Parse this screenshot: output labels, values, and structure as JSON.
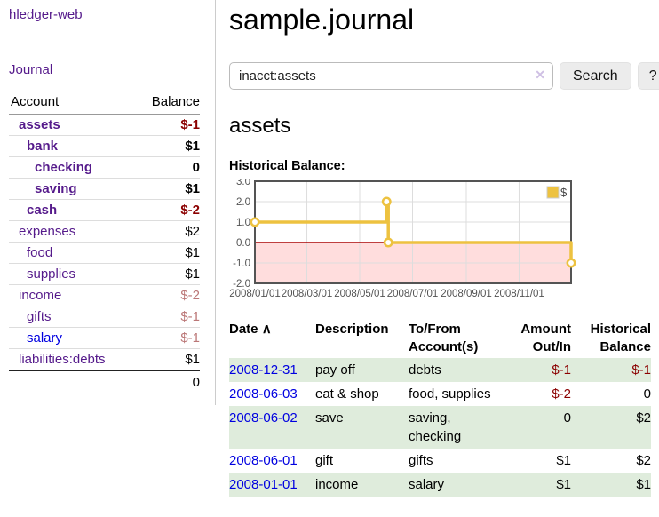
{
  "app": {
    "brand": "hledger-web",
    "nav_journal": "Journal"
  },
  "colors": {
    "link_purple": "#551a8b",
    "link_blue": "#0000e0",
    "negative": "#8b0000",
    "negative_muted": "#bb7777",
    "row_stripe_green": "#dfecdc"
  },
  "sidebar": {
    "table": {
      "col_account": "Account",
      "col_balance": "Balance",
      "rows": [
        {
          "label": "assets",
          "indent": 1,
          "bold": true,
          "balance": "$-1"
        },
        {
          "label": "bank",
          "indent": 2,
          "bold": true,
          "balance": "$1"
        },
        {
          "label": "checking",
          "indent": 3,
          "bold": true,
          "balance": "0"
        },
        {
          "label": "saving",
          "indent": 3,
          "bold": true,
          "balance": "$1"
        },
        {
          "label": "cash",
          "indent": 2,
          "bold": true,
          "balance": "$-2"
        },
        {
          "label": "expenses",
          "indent": 1,
          "bold": false,
          "balance": "$2"
        },
        {
          "label": "food",
          "indent": 2,
          "bold": false,
          "balance": "$1"
        },
        {
          "label": "supplies",
          "indent": 2,
          "bold": false,
          "balance": "$1"
        },
        {
          "label": "income",
          "indent": 1,
          "bold": false,
          "balance": "$-2"
        },
        {
          "label": "gifts",
          "indent": 2,
          "bold": false,
          "balance": "$-1"
        },
        {
          "label": "salary",
          "indent": 2,
          "bold": false,
          "balance": "$-1",
          "link": "blue"
        },
        {
          "label": "liabilities:debts",
          "indent": 1,
          "bold": false,
          "balance": "$1"
        }
      ],
      "total": "0"
    }
  },
  "main": {
    "title": "sample.journal",
    "search": {
      "value": "inacct:assets",
      "clear_icon": "✕",
      "button": "Search",
      "help": "?"
    },
    "account_heading": "assets",
    "chart_label": "Historical Balance:"
  },
  "chart_data": {
    "type": "line",
    "step": true,
    "title": "Historical Balance:",
    "legend": [
      {
        "label": "$",
        "color": "#edc240"
      }
    ],
    "legend_position": "top-right",
    "series": [
      {
        "name": "$",
        "points": [
          {
            "date": "2008-01-01",
            "day": 0,
            "value": 1.0
          },
          {
            "date": "2008-06-01",
            "day": 152,
            "value": 2.0
          },
          {
            "date": "2008-06-03",
            "day": 154,
            "value": 0.0
          },
          {
            "date": "2008-12-31",
            "day": 365,
            "value": -1.0
          }
        ]
      }
    ],
    "xlim_days": [
      0,
      365
    ],
    "ylim": [
      -2.0,
      3.0
    ],
    "yticks": [
      {
        "value": 3,
        "label": "3.0"
      },
      {
        "value": 2,
        "label": "2.0"
      },
      {
        "value": 1,
        "label": "1.0"
      },
      {
        "value": 0,
        "label": "0.0"
      },
      {
        "value": -1,
        "label": "-1.0"
      },
      {
        "value": -2,
        "label": "-2.0"
      }
    ],
    "xticks": [
      {
        "day": 0,
        "label": "2008/01/01"
      },
      {
        "day": 60,
        "label": "2008/03/01"
      },
      {
        "day": 121,
        "label": "2008/05/01"
      },
      {
        "day": 182,
        "label": "2008/07/01"
      },
      {
        "day": 244,
        "label": "2008/09/01"
      },
      {
        "day": 305,
        "label": "2008/11/01"
      }
    ],
    "grid": true,
    "line_color": "#edc240",
    "marker_fill": "#ffffff",
    "negative_region_color": "#ffdddd",
    "zero_line_color": "#aa0000",
    "gridline_color": "#dddddd",
    "plot_border_color": "#545454",
    "tick_label_color": "#545454"
  },
  "register": {
    "headers": {
      "date": "Date",
      "sort_icon": "∧",
      "description": "Description",
      "accounts": [
        "To/From",
        "Account(s)"
      ],
      "amount": [
        "Amount",
        "Out/In"
      ],
      "balance": [
        "Historical",
        "Balance"
      ]
    },
    "rows": [
      {
        "date": "2008-12-31",
        "description": "pay off",
        "accounts": "debts",
        "amount": "$-1",
        "balance": "$-1"
      },
      {
        "date": "2008-06-03",
        "description": "eat & shop",
        "accounts": "food, supplies",
        "amount": "$-2",
        "balance": "0"
      },
      {
        "date": "2008-06-02",
        "description": "save",
        "accounts": "saving, checking",
        "amount": "0",
        "balance": "$2"
      },
      {
        "date": "2008-06-01",
        "description": "gift",
        "accounts": "gifts",
        "amount": "$1",
        "balance": "$2"
      },
      {
        "date": "2008-01-01",
        "description": "income",
        "accounts": "salary",
        "amount": "$1",
        "balance": "$1"
      }
    ]
  }
}
